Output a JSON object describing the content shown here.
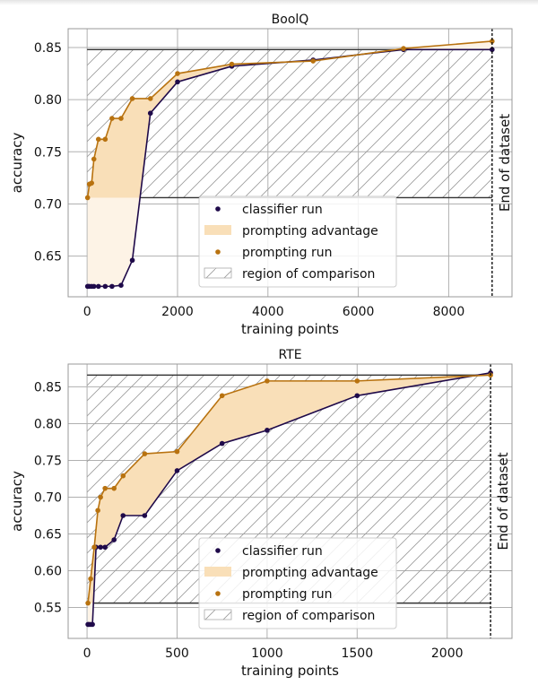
{
  "colors": {
    "classifier": "#1f0a4a",
    "prompting": "#b8720f",
    "advantage_fill": "#f9dfb8",
    "advantage_fill_outside": "#fdf3e6",
    "grid": "#b0b0b0",
    "region_line": "#333333",
    "end_line": "#111111",
    "hatch": "#9a9a9a"
  },
  "chart_data": [
    {
      "type": "line",
      "title": "BoolQ",
      "xlabel": "training points",
      "ylabel": "accuracy",
      "xlim": [
        -420,
        9400
      ],
      "ylim": [
        0.611,
        0.868
      ],
      "xticks": [
        0,
        2000,
        4000,
        6000,
        8000
      ],
      "xtick_labels": [
        "0",
        "2000",
        "4000",
        "6000",
        "8000"
      ],
      "yticks": [
        0.65,
        0.7,
        0.75,
        0.8,
        0.85
      ],
      "ytick_labels": [
        "0.65",
        "0.70",
        "0.75",
        "0.80",
        "0.85"
      ],
      "grid": true,
      "legend_position": "lower-center",
      "end_of_dataset": 8960,
      "end_of_dataset_label": "End of dataset",
      "region_of_comparison": {
        "x": [
          0,
          8960
        ],
        "y": [
          0.706,
          0.848
        ]
      },
      "series": [
        {
          "name": "classifier run",
          "x": [
            10,
            20,
            50,
            100,
            150,
            250,
            400,
            550,
            750,
            1000,
            1400,
            2000,
            3200,
            5000,
            7000,
            8960
          ],
          "y": [
            0.621,
            0.621,
            0.621,
            0.621,
            0.621,
            0.621,
            0.621,
            0.621,
            0.622,
            0.646,
            0.787,
            0.817,
            0.832,
            0.838,
            0.848,
            0.848
          ]
        },
        {
          "name": "prompting run",
          "x": [
            10,
            50,
            100,
            150,
            250,
            400,
            550,
            750,
            1000,
            1400,
            2000,
            3200,
            5000,
            7000,
            8960
          ],
          "y": [
            0.706,
            0.719,
            0.72,
            0.743,
            0.762,
            0.762,
            0.782,
            0.782,
            0.801,
            0.801,
            0.825,
            0.834,
            0.837,
            0.849,
            0.856
          ]
        }
      ],
      "legend": [
        "classifier run",
        "prompting advantage",
        "prompting run",
        "region of comparison"
      ]
    },
    {
      "type": "line",
      "title": "RTE",
      "xlabel": "training points",
      "ylabel": "accuracy",
      "xlim": [
        -105,
        2360
      ],
      "ylim": [
        0.508,
        0.881
      ],
      "xticks": [
        0,
        500,
        1000,
        1500,
        2000
      ],
      "xtick_labels": [
        "0",
        "500",
        "1000",
        "1500",
        "2000"
      ],
      "yticks": [
        0.55,
        0.6,
        0.65,
        0.7,
        0.75,
        0.8,
        0.85
      ],
      "ytick_labels": [
        "0.55",
        "0.60",
        "0.65",
        "0.70",
        "0.75",
        "0.80",
        "0.85"
      ],
      "grid": true,
      "legend_position": "lower-center",
      "end_of_dataset": 2241,
      "end_of_dataset_label": "End of dataset",
      "region_of_comparison": {
        "x": [
          0,
          2241
        ],
        "y": [
          0.556,
          0.866
        ]
      },
      "series": [
        {
          "name": "classifier run",
          "x": [
            5,
            10,
            20,
            30,
            50,
            75,
            100,
            150,
            200,
            320,
            500,
            750,
            1000,
            1500,
            2241
          ],
          "y": [
            0.527,
            0.527,
            0.527,
            0.527,
            0.632,
            0.632,
            0.632,
            0.642,
            0.675,
            0.675,
            0.736,
            0.773,
            0.791,
            0.838,
            0.869
          ]
        },
        {
          "name": "prompting run",
          "x": [
            5,
            20,
            40,
            60,
            75,
            100,
            150,
            200,
            320,
            500,
            750,
            1000,
            1500,
            2241
          ],
          "y": [
            0.556,
            0.589,
            0.632,
            0.682,
            0.7,
            0.712,
            0.712,
            0.729,
            0.759,
            0.762,
            0.838,
            0.858,
            0.858,
            0.866
          ]
        }
      ],
      "legend": [
        "classifier run",
        "prompting advantage",
        "prompting run",
        "region of comparison"
      ]
    }
  ]
}
